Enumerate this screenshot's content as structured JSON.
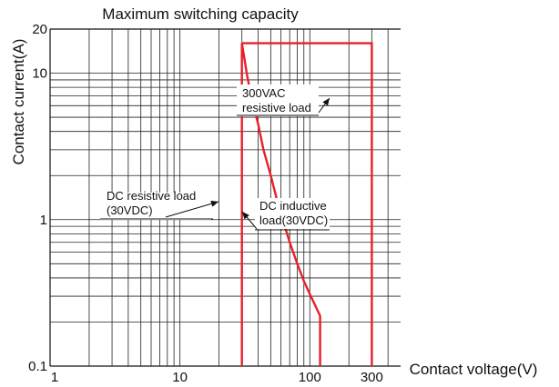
{
  "chart_data": {
    "type": "line",
    "title": "Maximum switching capacity",
    "xlabel": "Contact voltage(V)",
    "ylabel": "Contact current(A)",
    "x_scale": "log",
    "y_scale": "log",
    "xlim": [
      1,
      500
    ],
    "ylim": [
      0.1,
      20
    ],
    "grid": true,
    "x_ticks": [
      {
        "value": 1,
        "label": "1"
      },
      {
        "value": 10,
        "label": "10"
      },
      {
        "value": 100,
        "label": "100"
      },
      {
        "value": 300,
        "label": "300"
      }
    ],
    "y_ticks": [
      {
        "value": 0.1,
        "label": "0.1"
      },
      {
        "value": 1,
        "label": "1"
      },
      {
        "value": 10,
        "label": "10"
      },
      {
        "value": 20,
        "label": "20"
      }
    ],
    "series": [
      {
        "color": "#e8202a",
        "x": [
          30,
          300,
          300,
          300
        ],
        "y": [
          16,
          16,
          16,
          0.1
        ]
      },
      {
        "color": "#e8202a",
        "x": [
          30,
          30
        ],
        "y": [
          16,
          0.1
        ]
      },
      {
        "color": "#e8202a",
        "x": [
          30,
          33,
          36,
          40,
          44,
          50,
          56,
          63,
          70,
          80,
          90,
          100,
          110,
          120,
          120
        ],
        "y": [
          16,
          9.5,
          6.5,
          4.5,
          3.0,
          2.0,
          1.35,
          0.95,
          0.7,
          0.5,
          0.38,
          0.31,
          0.26,
          0.22,
          0.1
        ]
      }
    ],
    "annotations": [
      {
        "lines": [
          "300VAC",
          "resistive load"
        ]
      },
      {
        "lines": [
          "DC resistive load",
          "(30VDC)"
        ]
      },
      {
        "lines": [
          "DC inductive",
          "load(30VDC)"
        ]
      }
    ]
  }
}
